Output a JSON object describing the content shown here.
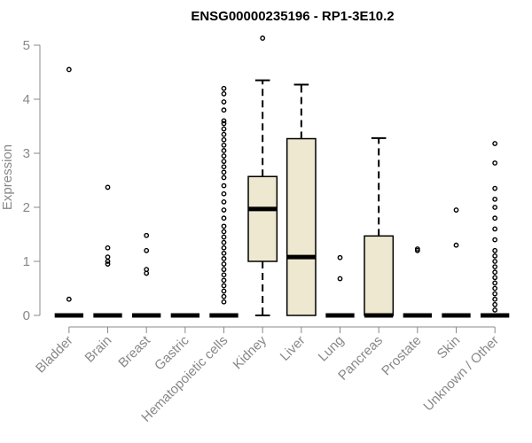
{
  "chart_data": {
    "type": "box",
    "title": "ENSG00000235196 - RP1-3E10.2",
    "xlabel": "",
    "ylabel": "Expression",
    "ylim": [
      0,
      5.2
    ],
    "yticks": [
      0,
      1,
      2,
      3,
      4,
      5
    ],
    "box_fill": "#EEE8D0",
    "categories": [
      "Bladder",
      "Brain",
      "Breast",
      "Gastric",
      "Hematopoietic cells",
      "Kidney",
      "Liver",
      "Lung",
      "Pancreas",
      "Prostate",
      "Skin",
      "Unknown / Other"
    ],
    "boxes": [
      {
        "q1": 0,
        "median": 0,
        "q3": 0,
        "whisker_low": 0,
        "whisker_high": 0,
        "outliers": [
          0.3,
          4.55
        ]
      },
      {
        "q1": 0,
        "median": 0,
        "q3": 0,
        "whisker_low": 0,
        "whisker_high": 0,
        "outliers": [
          0.95,
          1.0,
          1.08,
          1.25,
          2.37
        ]
      },
      {
        "q1": 0,
        "median": 0,
        "q3": 0,
        "whisker_low": 0,
        "whisker_high": 0,
        "outliers": [
          0.78,
          0.85,
          1.2,
          1.48
        ]
      },
      {
        "q1": 0,
        "median": 0,
        "q3": 0,
        "whisker_low": 0,
        "whisker_high": 0,
        "outliers": []
      },
      {
        "q1": 0,
        "median": 0,
        "q3": 0,
        "whisker_low": 0,
        "whisker_high": 0,
        "outliers": [
          0.25,
          0.35,
          0.45,
          0.55,
          0.65,
          0.75,
          0.85,
          0.95,
          1.05,
          1.15,
          1.25,
          1.35,
          1.45,
          1.55,
          1.65,
          1.8,
          1.95,
          2.1,
          2.25,
          2.4,
          2.55,
          2.65,
          2.75,
          2.85,
          2.95,
          3.05,
          3.15,
          3.25,
          3.35,
          3.45,
          3.55,
          3.6,
          3.8,
          3.95,
          4.1,
          4.2
        ]
      },
      {
        "q1": 1.0,
        "median": 1.97,
        "q3": 2.57,
        "whisker_low": 0,
        "whisker_high": 4.35,
        "outliers": [
          5.13
        ]
      },
      {
        "q1": 0,
        "median": 1.08,
        "q3": 3.27,
        "whisker_low": 0,
        "whisker_high": 4.27,
        "outliers": []
      },
      {
        "q1": 0,
        "median": 0,
        "q3": 0,
        "whisker_low": 0,
        "whisker_high": 0,
        "outliers": [
          0.68,
          1.07
        ]
      },
      {
        "q1": 0,
        "median": 0,
        "q3": 1.47,
        "whisker_low": 0,
        "whisker_high": 3.28,
        "outliers": []
      },
      {
        "q1": 0,
        "median": 0,
        "q3": 0,
        "whisker_low": 0,
        "whisker_high": 0,
        "outliers": [
          1.2,
          1.23
        ]
      },
      {
        "q1": 0,
        "median": 0,
        "q3": 0,
        "whisker_low": 0,
        "whisker_high": 0,
        "outliers": [
          1.3,
          1.95
        ]
      },
      {
        "q1": 0,
        "median": 0,
        "q3": 0,
        "whisker_low": 0,
        "whisker_high": 0,
        "outliers": [
          0.1,
          0.2,
          0.3,
          0.4,
          0.5,
          0.6,
          0.7,
          0.8,
          0.9,
          1.0,
          1.1,
          1.2,
          1.4,
          1.6,
          1.8,
          2.0,
          2.15,
          2.35,
          2.82,
          3.18
        ]
      }
    ]
  }
}
